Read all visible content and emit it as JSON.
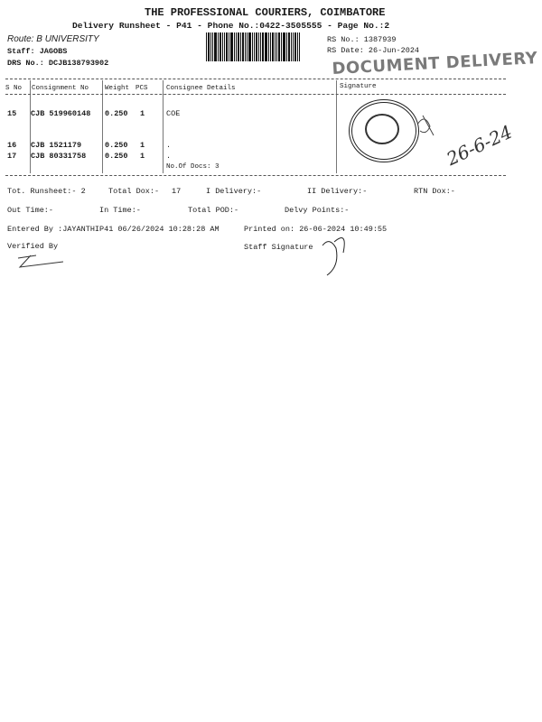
{
  "header": {
    "company": "THE PROFESSIONAL COURIERS, COIMBATORE",
    "subtitle": "Delivery Runsheet - P41 - Phone No.:0422-3505555 - Page No.:2",
    "route": "Route: B UNIVERSITY",
    "staff": "Staff: JAGOBS",
    "drs_no": "DRS No.: DCJB138793902",
    "rs_no": "RS No.: 1387939",
    "rs_date": "RS Date: 26-Jun-2024",
    "stamp": "DOCUMENT DELIVERY"
  },
  "table": {
    "columns": [
      "S No",
      "Consignment No",
      "Weight",
      "PCS",
      "Consignee Details",
      "Signature"
    ],
    "rows": [
      {
        "sno": "15",
        "consignment": "CJB 519960148",
        "weight": "0.250",
        "pcs": "1",
        "consignee": "COE"
      },
      {
        "sno": "16",
        "consignment": "CJB 1521179",
        "weight": "0.250",
        "pcs": "1",
        "consignee": "."
      },
      {
        "sno": "17",
        "consignment": "CJB 80331758",
        "weight": "0.250",
        "pcs": "1",
        "consignee": "."
      }
    ],
    "no_of_docs": "No.Of Docs: 3",
    "handwritten_date": "26-6-24"
  },
  "summary": {
    "tot_runsheet": "Tot. Runsheet:- 2",
    "total_dox": "Total Dox:-",
    "total_dox_value": "17",
    "i_delivery": "I Delivery:-",
    "ii_delivery": "II Delivery:-",
    "rtn_dox": "RTN Dox:-",
    "out_time": "Out Time:-",
    "in_time": "In Time:-",
    "total_pod": "Total POD:-",
    "delvy_points": "Delvy Points:-",
    "entered_by": "Entered By :JAYANTHIP41 06/26/2024 10:28:28 AM",
    "printed_on": "Printed on: 26-06-2024 10:49:55",
    "verified_by": "Verified By",
    "staff_signature": "Staff Signature"
  }
}
